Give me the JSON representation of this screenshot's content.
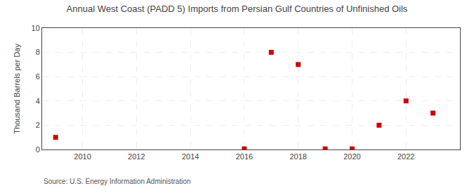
{
  "chart_data": {
    "type": "scatter",
    "title": "Annual West Coast (PADD 5) Imports from Persian Gulf Countries of Unfinished Oils",
    "ylabel": "Thousand Barrels per Day",
    "source": "Source: U.S. Energy Information Administration",
    "x": [
      2009,
      2016,
      2017,
      2018,
      2019,
      2020,
      2021,
      2022,
      2023
    ],
    "values": [
      1,
      0.05,
      8,
      7,
      0.05,
      0.05,
      2,
      4,
      3
    ],
    "color": "#cc0000",
    "marker": "square",
    "xlim": [
      2008.5,
      2024
    ],
    "ylim": [
      0,
      10
    ],
    "xticks": [
      2010,
      2012,
      2014,
      2016,
      2018,
      2020,
      2022
    ],
    "yticks": [
      0,
      2,
      4,
      6,
      8,
      10
    ],
    "grid": true
  }
}
